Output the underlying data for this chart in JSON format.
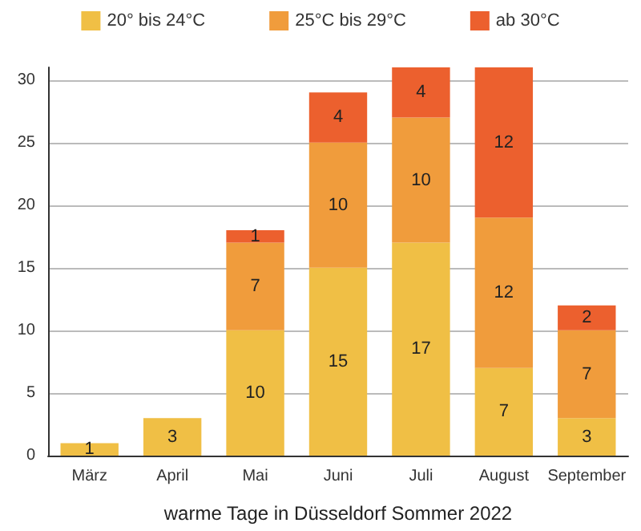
{
  "chart_data": {
    "type": "bar",
    "stacked": true,
    "xlabel": "warme Tage in Düsseldorf Sommer 2022",
    "categories": [
      "März",
      "April",
      "Mai",
      "Juni",
      "Juli",
      "August",
      "September"
    ],
    "series": [
      {
        "name": "20° bis 24°C",
        "color": "#f0bf45",
        "values": [
          1,
          3,
          10,
          15,
          17,
          7,
          3
        ]
      },
      {
        "name": "25°C bis 29°C",
        "color": "#f09c3c",
        "values": [
          null,
          null,
          7,
          10,
          10,
          12,
          7
        ]
      },
      {
        "name": "ab 30°C",
        "color": "#ec602e",
        "values": [
          null,
          null,
          1,
          4,
          4,
          12,
          2
        ]
      }
    ],
    "ylim": [
      0,
      31
    ],
    "yticks": [
      0,
      5,
      10,
      15,
      20,
      25,
      30
    ],
    "grid": "y",
    "legend": "top",
    "data_labels": true
  }
}
